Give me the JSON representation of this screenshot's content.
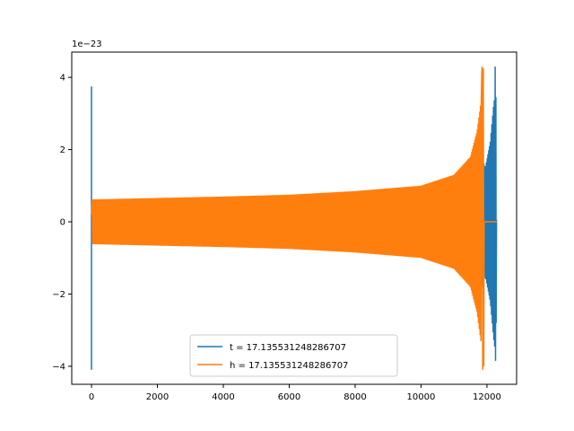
{
  "chart_data": {
    "type": "line",
    "title": "",
    "xlabel": "",
    "ylabel": "",
    "y_offset_label": "1e−23",
    "xlim": [
      -600,
      12900
    ],
    "ylim": [
      -4.5,
      4.7
    ],
    "xticks": [
      0,
      2000,
      4000,
      6000,
      8000,
      10000,
      12000
    ],
    "xtick_labels": [
      "0",
      "2000",
      "4000",
      "6000",
      "8000",
      "10000",
      "12000"
    ],
    "yticks": [
      -4,
      -2,
      0,
      2,
      4
    ],
    "ytick_labels": [
      "−4",
      "−2",
      "0",
      "2",
      "4"
    ],
    "grid": false,
    "legend_position": "lower center",
    "series": [
      {
        "name": "t = 17.135531248286707",
        "color": "#1f77b4",
        "description_points": {
          "x": [
            0,
            0,
            100,
            2000,
            4000,
            6000,
            8000,
            10000,
            11000,
            11500,
            11800,
            11950,
            12100,
            12200,
            12250,
            12280
          ],
          "envelope": [
            3.75,
            -4.1,
            0.6,
            0.65,
            0.68,
            0.72,
            0.8,
            0.95,
            1.15,
            1.4,
            1.8,
            1.5,
            2.2,
            3.0,
            4.3,
            -3.85
          ]
        }
      },
      {
        "name": "h = 17.135531248286707",
        "color": "#ff7f0e",
        "description_points": {
          "x": [
            0,
            100,
            2000,
            4000,
            6000,
            8000,
            10000,
            11000,
            11500,
            11700,
            11850,
            11900,
            11950,
            12300
          ],
          "envelope": [
            0.6,
            0.65,
            0.67,
            0.7,
            0.75,
            0.85,
            1.0,
            1.3,
            1.8,
            2.5,
            4.3,
            -4.1,
            0.0,
            0.0
          ]
        }
      }
    ]
  }
}
